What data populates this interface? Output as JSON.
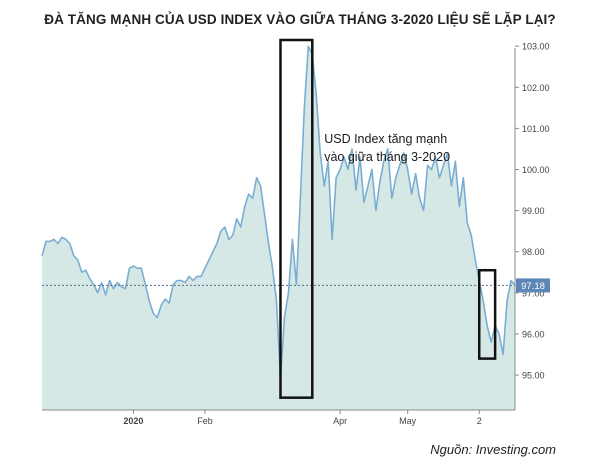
{
  "title": "ĐÀ TĂNG MẠNH CỦA USD INDEX VÀO GIỮA THÁNG 3-2020 LIỆU SẼ LẶP LẠI?",
  "source": "Nguồn: Investing.com",
  "colors": {
    "line": "#79aed2",
    "fill": "#d6e8e6",
    "axis": "#8a8a8a",
    "hline": "#5a6a8a",
    "badge": "#5b86b5",
    "box": "#111111"
  },
  "chart_data": {
    "type": "area",
    "title": "ĐÀ TĂNG MẠNH CỦA USD INDEX VÀO GIỮA THÁNG 3-2020 LIỆU SẼ LẶP LẠI?",
    "xlabel": "",
    "ylabel": "",
    "ylim": [
      94.15,
      103.15
    ],
    "yticks": [
      95.0,
      96.0,
      97.0,
      98.0,
      99.0,
      100.0,
      101.0,
      102.0,
      103.0
    ],
    "ytick_labels": [
      "95.00",
      "96.00",
      "97.00",
      "98.00",
      "99.00",
      "100.00",
      "101.00",
      "102.00",
      "103.00"
    ],
    "x_ticks": [
      {
        "index": 23,
        "label": "2020"
      },
      {
        "index": 41,
        "label": "Feb"
      },
      {
        "index": 75,
        "label": "Apr"
      },
      {
        "index": 92,
        "label": "May"
      },
      {
        "index": 110,
        "label": "2"
      }
    ],
    "current_value": 97.18,
    "current_label": "97.18",
    "annotation": {
      "lines": [
        "USD Index tăng mạnh",
        "vào giữa tháng 3-2020"
      ],
      "anchor_index": 71,
      "anchor_value": 100.65
    },
    "highlight_boxes": [
      {
        "from_index": 60,
        "to_index": 68,
        "from_value": 94.45,
        "to_value": 103.15
      },
      {
        "from_index": 110,
        "to_index": 114,
        "from_value": 95.4,
        "to_value": 97.55
      }
    ],
    "values": [
      97.9,
      98.25,
      98.25,
      98.3,
      98.2,
      98.35,
      98.3,
      98.2,
      97.9,
      97.8,
      97.5,
      97.55,
      97.35,
      97.2,
      97.0,
      97.25,
      96.95,
      97.3,
      97.1,
      97.25,
      97.15,
      97.1,
      97.6,
      97.65,
      97.6,
      97.6,
      97.2,
      96.8,
      96.5,
      96.4,
      96.7,
      96.85,
      96.75,
      97.2,
      97.3,
      97.3,
      97.25,
      97.4,
      97.3,
      97.4,
      97.4,
      97.6,
      97.8,
      98.0,
      98.2,
      98.5,
      98.6,
      98.3,
      98.4,
      98.8,
      98.6,
      99.1,
      99.4,
      99.3,
      99.8,
      99.6,
      98.9,
      98.2,
      97.6,
      96.8,
      94.9,
      96.4,
      97.0,
      98.3,
      97.2,
      99.3,
      101.5,
      103.0,
      102.8,
      101.8,
      100.4,
      99.6,
      100.2,
      98.3,
      99.8,
      100.0,
      100.3,
      100.0,
      100.5,
      99.5,
      100.3,
      99.2,
      99.6,
      100.0,
      99.0,
      99.7,
      100.2,
      100.5,
      99.3,
      99.8,
      100.1,
      100.4,
      100.0,
      99.4,
      99.9,
      99.3,
      99.0,
      100.1,
      100.0,
      100.3,
      99.8,
      100.1,
      100.4,
      99.6,
      100.2,
      99.1,
      99.8,
      98.7,
      98.4,
      97.8,
      97.3,
      96.8,
      96.2,
      95.8,
      96.2,
      96.0,
      95.5,
      96.8,
      97.3,
      97.18
    ]
  }
}
